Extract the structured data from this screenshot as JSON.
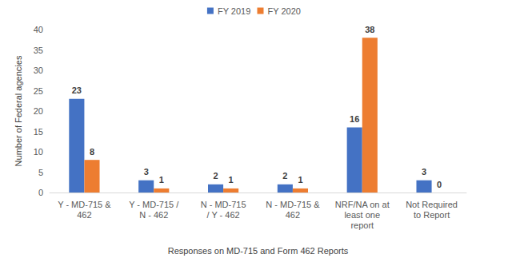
{
  "chart_data": {
    "type": "bar",
    "x_label": "Responses on MD-715 and Form 462 Reports",
    "y_label": "Number of Federal agencies",
    "categories": [
      "Y - MD-715 &\n462",
      "Y - MD-715 /\nN - 462",
      "N - MD-715\n/ Y - 462",
      "N - MD-715 &\n462",
      "NRF/NA on at\nleast one\nreport",
      "Not Required\nto Report"
    ],
    "series": [
      {
        "name": "FY 2019",
        "color": "#4472c4",
        "values": [
          23,
          3,
          2,
          2,
          16,
          3
        ]
      },
      {
        "name": "FY 2020",
        "color": "#ed7d31",
        "values": [
          8,
          1,
          1,
          1,
          38,
          0
        ]
      }
    ],
    "ylim": [
      0,
      40
    ],
    "yticks": [
      0,
      5,
      10,
      15,
      20,
      25,
      30,
      35,
      40
    ],
    "grid": false,
    "legend": "top",
    "data_labels": true
  }
}
